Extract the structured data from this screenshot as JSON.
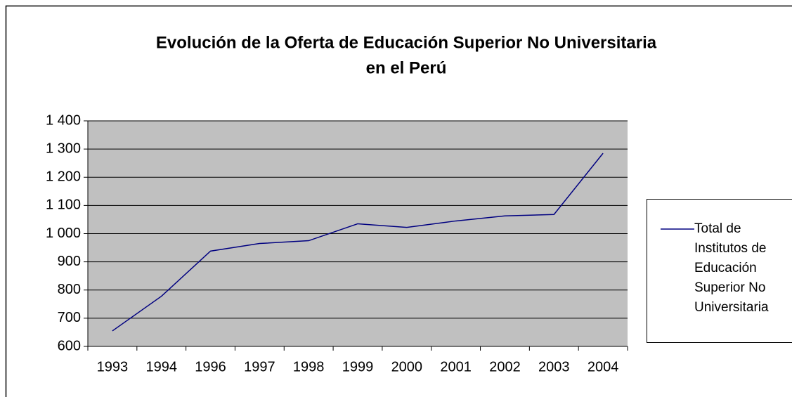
{
  "chart_data": {
    "type": "line",
    "title": [
      "Evolución de la Oferta de Educación Superior No Universitaria",
      "en el Perú"
    ],
    "categories": [
      "1993",
      "1994",
      "1996",
      "1997",
      "1998",
      "1999",
      "2000",
      "2001",
      "2002",
      "2003",
      "2004"
    ],
    "series": [
      {
        "name": "Total de Institutos de Educación Superior No Universitaria",
        "color": "#000080",
        "values": [
          655,
          778,
          938,
          965,
          975,
          1035,
          1022,
          1045,
          1063,
          1068,
          1285
        ]
      }
    ],
    "ylim": [
      600,
      1400
    ],
    "yticks": [
      600,
      700,
      800,
      900,
      {
        "value": 1000,
        "label": "1 000"
      },
      {
        "value": 1100,
        "label": "1 100"
      },
      {
        "value": 1200,
        "label": "1 200"
      },
      {
        "value": 1300,
        "label": "1 300"
      },
      {
        "value": 1400,
        "label": "1 400"
      }
    ],
    "grid": true,
    "plot_background": "#c0c0c0",
    "legend": "right"
  }
}
